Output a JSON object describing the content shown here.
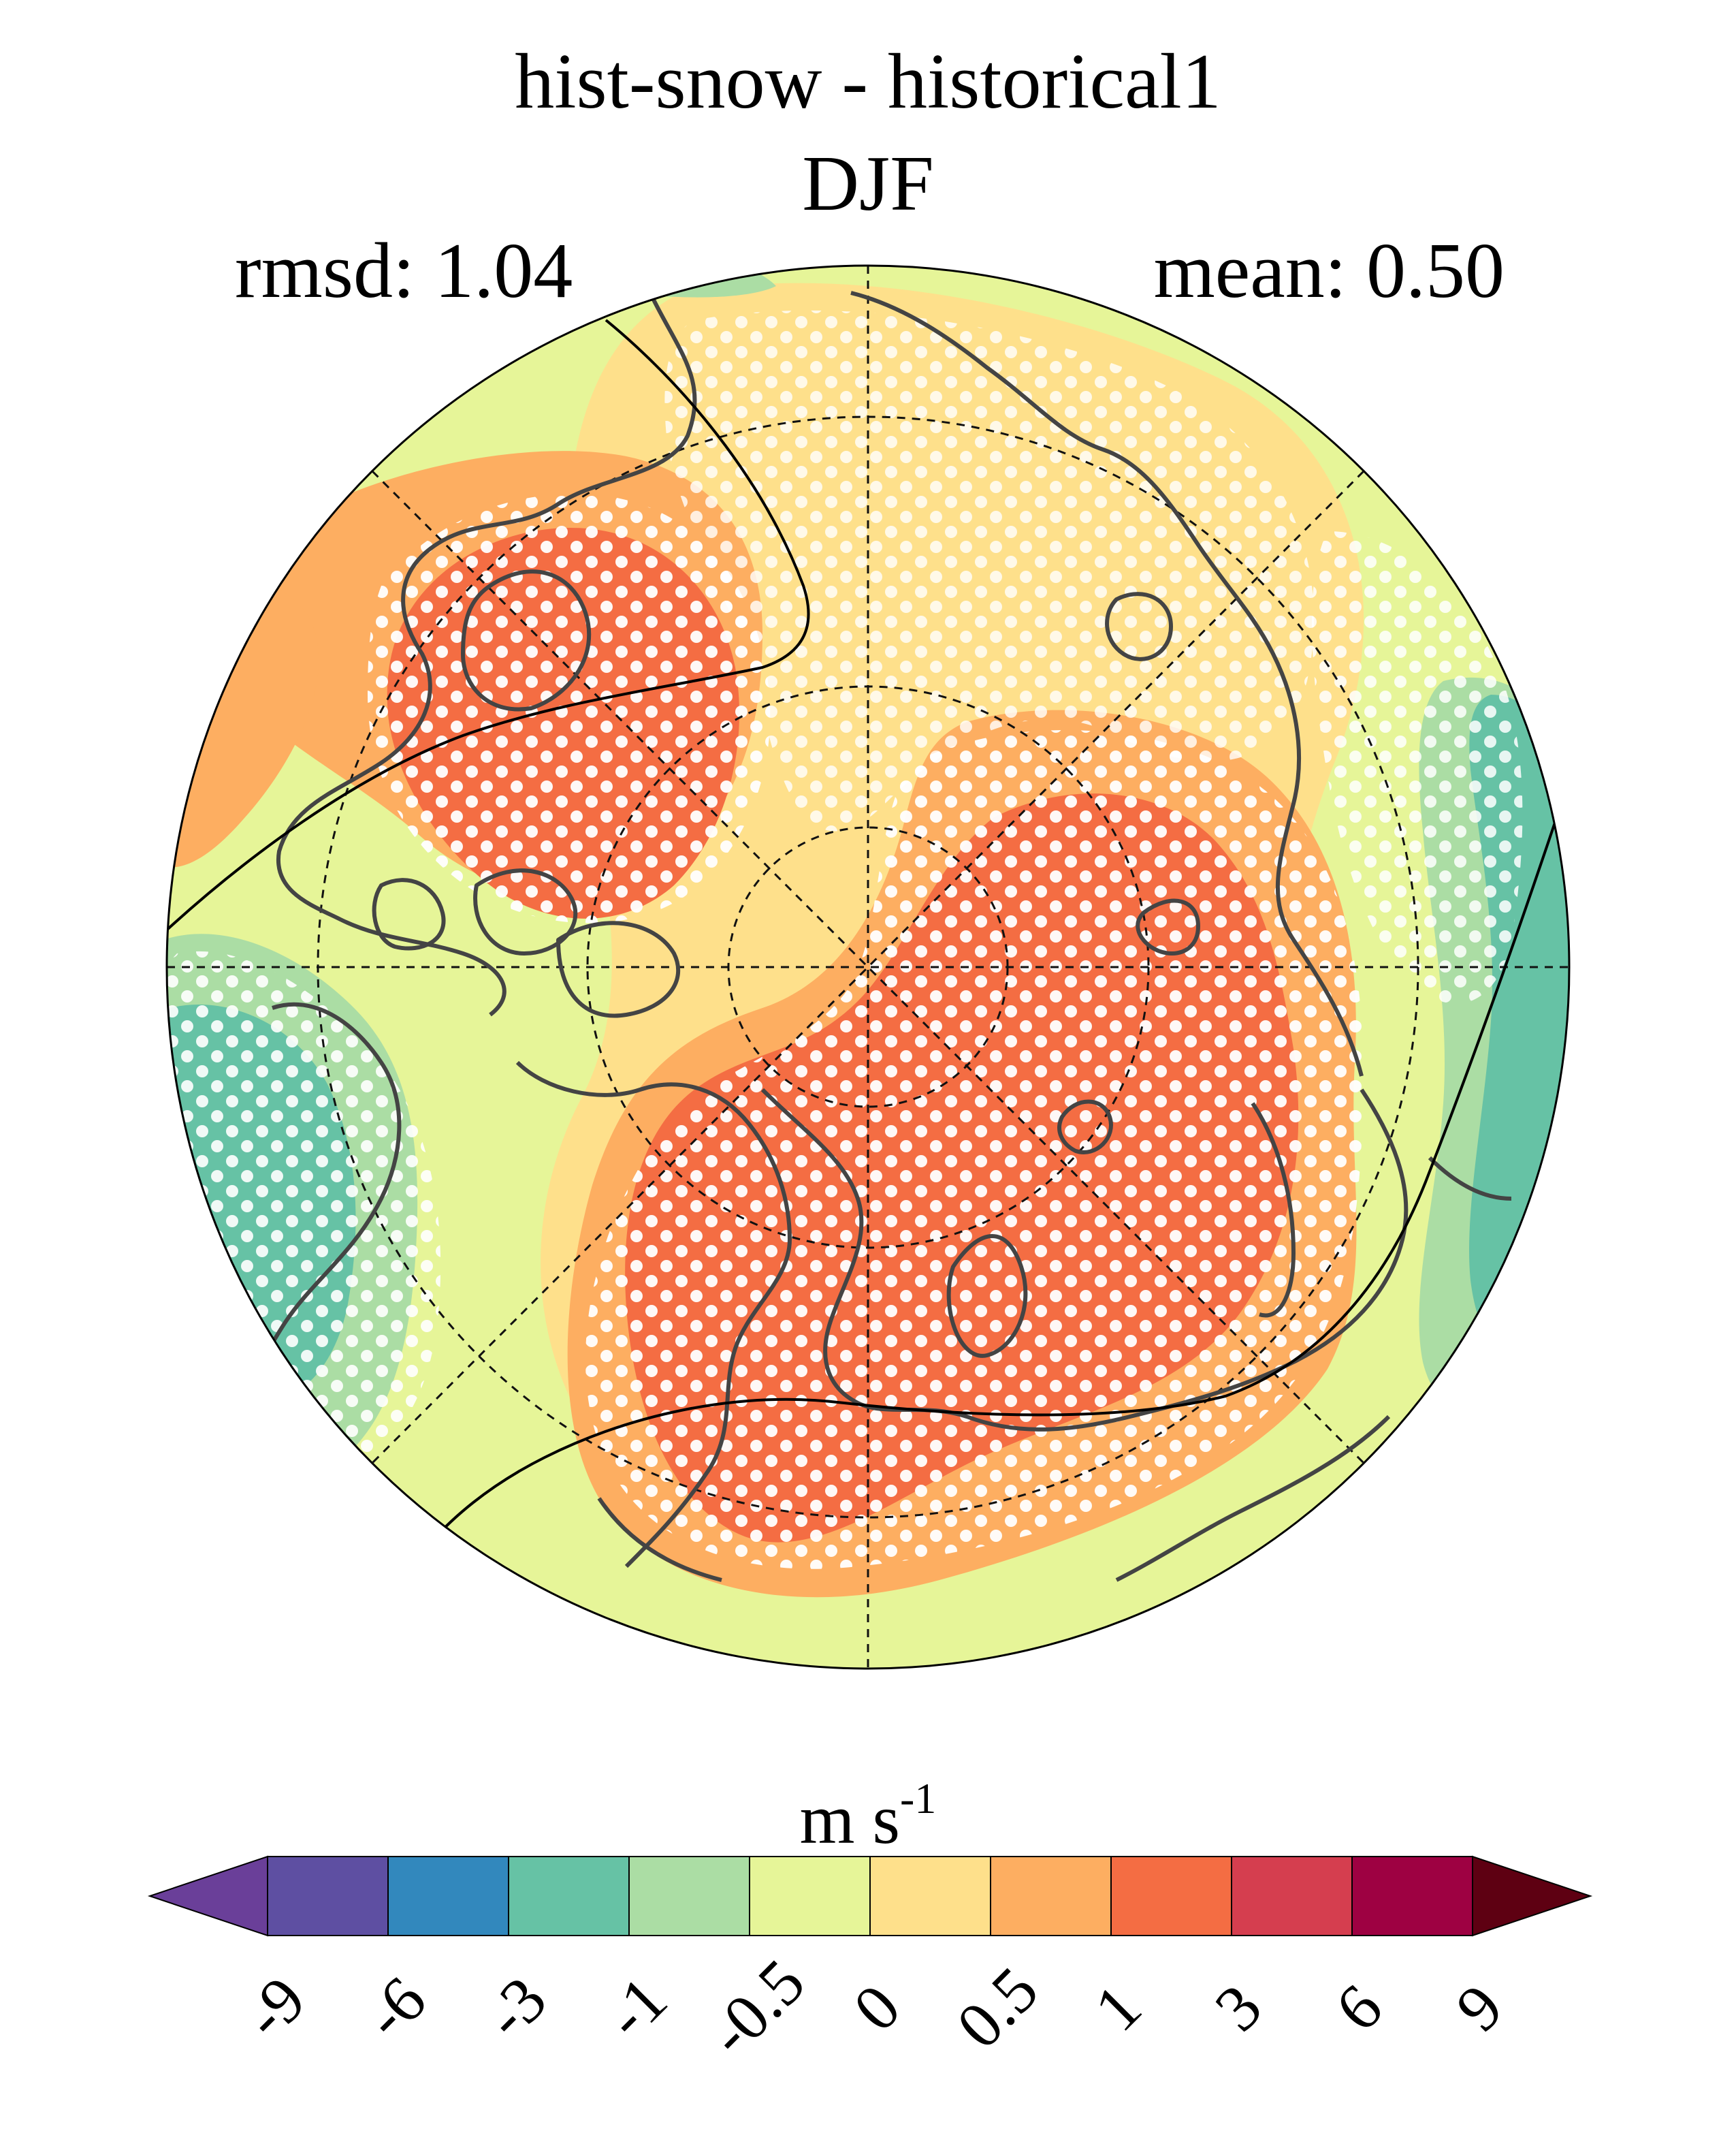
{
  "header": {
    "title_line1": "hist-snow - historical1",
    "title_line2": "DJF",
    "rmsd": "rmsd: 1.04",
    "mean": "mean: 0.50"
  },
  "colorbar": {
    "units": "m s",
    "units_superscript": "-1",
    "tick_labels": [
      "-9",
      "-6",
      "-3",
      "-1",
      "-0.5",
      "0",
      "0.5",
      "1",
      "3",
      "6",
      "9"
    ],
    "colors": [
      "#5e4fa2",
      "#3288bd",
      "#66c2a5",
      "#abdda4",
      "#e6f598",
      "#fee08b",
      "#fdae61",
      "#f46d43",
      "#d53e4f",
      "#9e0142"
    ],
    "extend_low_color": "#6a3f99",
    "extend_high_color": "#5e0012"
  },
  "map": {
    "projection": "north-polar-stereographic",
    "stippling": "white dots mark significant regions",
    "background_color": "#e6f598"
  }
}
